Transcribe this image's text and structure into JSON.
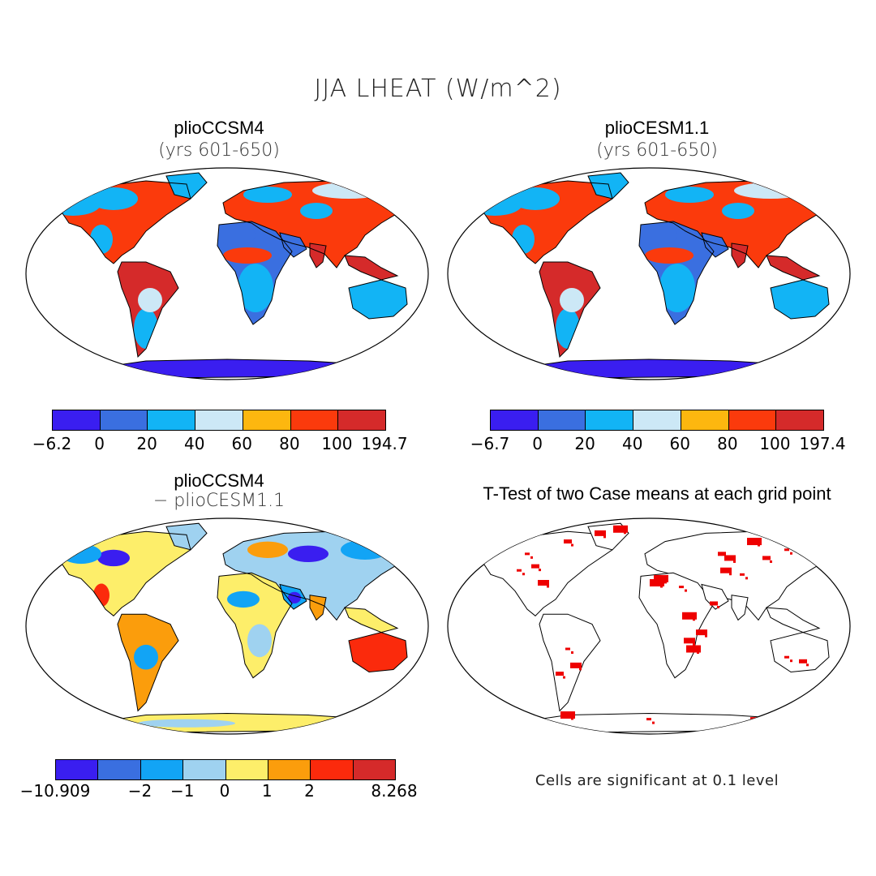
{
  "main_title": "JJA LHEAT (W/m^2)",
  "panels": [
    {
      "title": "plioCCSM4",
      "subtitle": "(yrs 601-650)",
      "colorbar": {
        "colors": [
          "#3a1ef0",
          "#3a6fe0",
          "#12b4f5",
          "#cce8f6",
          "#fdb70f",
          "#fb3a0c",
          "#d52a2a"
        ],
        "labels": [
          "−6.2",
          "0",
          "20",
          "40",
          "60",
          "80",
          "100",
          "194.7"
        ]
      }
    },
    {
      "title": "plioCESM1.1",
      "subtitle": "(yrs 601-650)",
      "colorbar": {
        "colors": [
          "#3a1ef0",
          "#3a6fe0",
          "#12b4f5",
          "#cce8f6",
          "#fdb70f",
          "#fb3a0c",
          "#d52a2a"
        ],
        "labels": [
          "−6.7",
          "0",
          "20",
          "40",
          "60",
          "80",
          "100",
          "197.4"
        ]
      }
    },
    {
      "title": "plioCCSM4",
      "subtitle": "− plioCESM1.1",
      "colorbar": {
        "colors": [
          "#3a1ef0",
          "#3a6fe0",
          "#12a4f5",
          "#9fd2f0",
          "#fdee6a",
          "#fb9d0c",
          "#fb2a0c",
          "#d52a2a"
        ],
        "labels": [
          "−10.909",
          "−2",
          "−1",
          "0",
          "1",
          "2",
          "8.268"
        ]
      }
    },
    {
      "title": "T-Test of two Case means at each grid point",
      "note": "Cells are significant at 0.1 level",
      "sig_color": "#ee0000"
    }
  ]
}
